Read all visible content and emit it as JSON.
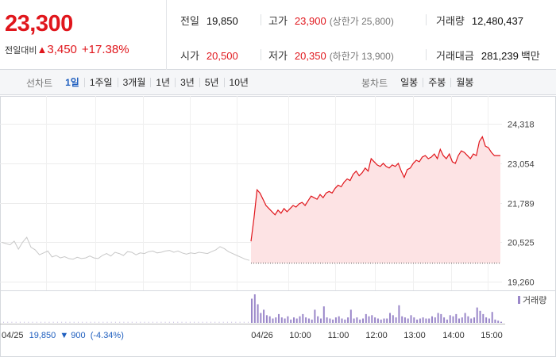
{
  "price": {
    "current": "23,300",
    "change_label": "전일대비",
    "change_arrow": "▲",
    "change_value": "3,450",
    "change_percent": "+17.38%"
  },
  "stats": {
    "prev_close_label": "전일",
    "prev_close": "19,850",
    "high_label": "고가",
    "high": "23,900",
    "high_sub": "(상한가 25,800)",
    "volume_label": "거래량",
    "volume": "12,480,437",
    "open_label": "시가",
    "open": "20,500",
    "low_label": "저가",
    "low": "20,350",
    "low_sub": "(하한가 13,900)",
    "amount_label": "거래대금",
    "amount": "281,239",
    "amount_unit": "백만"
  },
  "tabs": {
    "line_label": "선차트",
    "line_items": [
      "1일",
      "1주일",
      "3개월",
      "1년",
      "3년",
      "5년",
      "10년"
    ],
    "line_active": "1일",
    "candle_label": "봉차트",
    "candle_items": [
      "일봉",
      "주봉",
      "월봉"
    ]
  },
  "footer": {
    "prev_date": "04/25",
    "prev_price": "19,850",
    "prev_arrow": "▼",
    "prev_change": "900",
    "prev_percent": "(-4.34%)"
  },
  "colors": {
    "up": "#e0161c",
    "down": "#1f5fbf",
    "prev_line": "#c8c8c8",
    "area_fill": "#fde3e4",
    "volume": "#9a87c9"
  },
  "chart_data": {
    "type": "line",
    "ylim": [
      19260,
      24318
    ],
    "yticks": [
      "24,318",
      "23,054",
      "21,789",
      "20,525",
      "19,260"
    ],
    "yticks_values": [
      24318,
      23054,
      21789,
      20525,
      19260
    ],
    "x_labels": [
      "04/26",
      "10:00",
      "11:00",
      "12:00",
      "13:00",
      "14:00",
      "15:00"
    ],
    "volume_legend": "거래량",
    "reference_price": 19850,
    "previous_day": {
      "date": "04/25",
      "values": [
        20520,
        20480,
        20440,
        20560,
        20300,
        20520,
        20680,
        20360,
        20280,
        20120,
        20180,
        20240,
        20050,
        20100,
        20020,
        20060,
        20000,
        19980,
        20040,
        20000,
        20020,
        20080,
        20020,
        20000,
        20100,
        20160,
        20080,
        20200,
        20160,
        20100,
        20220,
        20200,
        20120,
        20180,
        20160,
        20220,
        20240,
        20180,
        20200,
        20240,
        20260,
        20200,
        20240,
        20180,
        20140,
        20180,
        20160,
        20200,
        20180,
        20160,
        20220,
        20280,
        20380,
        20320,
        20220,
        20160,
        20100,
        20040,
        19980,
        19940
      ]
    },
    "intraday": {
      "date": "04/26",
      "values": [
        20550,
        21300,
        22200,
        22100,
        21900,
        21700,
        21600,
        21500,
        21400,
        21550,
        21450,
        21600,
        21500,
        21600,
        21700,
        21650,
        21750,
        21800,
        21700,
        21850,
        22000,
        21950,
        21900,
        22050,
        21950,
        22100,
        22150,
        22100,
        22250,
        22350,
        22300,
        22450,
        22550,
        22500,
        22700,
        22800,
        22650,
        22750,
        22900,
        22800,
        23200,
        23100,
        23000,
        22950,
        23050,
        22950,
        22900,
        23000,
        22950,
        23050,
        22800,
        22600,
        22850,
        22900,
        23050,
        23150,
        23100,
        23250,
        23300,
        23200,
        23250,
        23350,
        23200,
        23500,
        23300,
        23200,
        23350,
        23100,
        23050,
        23300,
        23450,
        23400,
        23300,
        23200,
        23350,
        23300,
        23750,
        23900,
        23600,
        23550,
        23400,
        23300,
        23300,
        23300
      ]
    },
    "volume": {
      "prev_day": [
        1,
        1,
        1,
        1,
        1,
        1,
        1,
        1,
        1,
        1,
        1,
        1,
        1,
        1,
        1,
        1,
        1,
        1,
        1,
        1,
        1,
        1,
        1,
        1,
        1,
        1,
        1,
        1,
        1,
        1,
        1,
        1,
        1,
        1,
        1,
        1,
        1,
        1,
        1,
        1,
        1,
        1,
        1,
        1,
        1,
        1,
        1,
        1,
        1,
        1,
        1,
        1,
        1,
        1,
        1,
        1,
        1,
        1,
        1,
        1
      ],
      "intraday": [
        22,
        26,
        17,
        9,
        12,
        7,
        6,
        4,
        5,
        8,
        5,
        4,
        6,
        3,
        5,
        4,
        6,
        8,
        5,
        4,
        3,
        12,
        6,
        4,
        15,
        5,
        4,
        3,
        5,
        6,
        4,
        3,
        5,
        12,
        4,
        5,
        3,
        4,
        8,
        6,
        7,
        5,
        4,
        3,
        4,
        4,
        9,
        7,
        5,
        16,
        6,
        5,
        4,
        7,
        5,
        3,
        4,
        5,
        4,
        4,
        6,
        5,
        9,
        8,
        5,
        3,
        7,
        6,
        8,
        4,
        5,
        9,
        6,
        4,
        5,
        14,
        11,
        8,
        5,
        4,
        10,
        3,
        2,
        1
      ]
    }
  }
}
